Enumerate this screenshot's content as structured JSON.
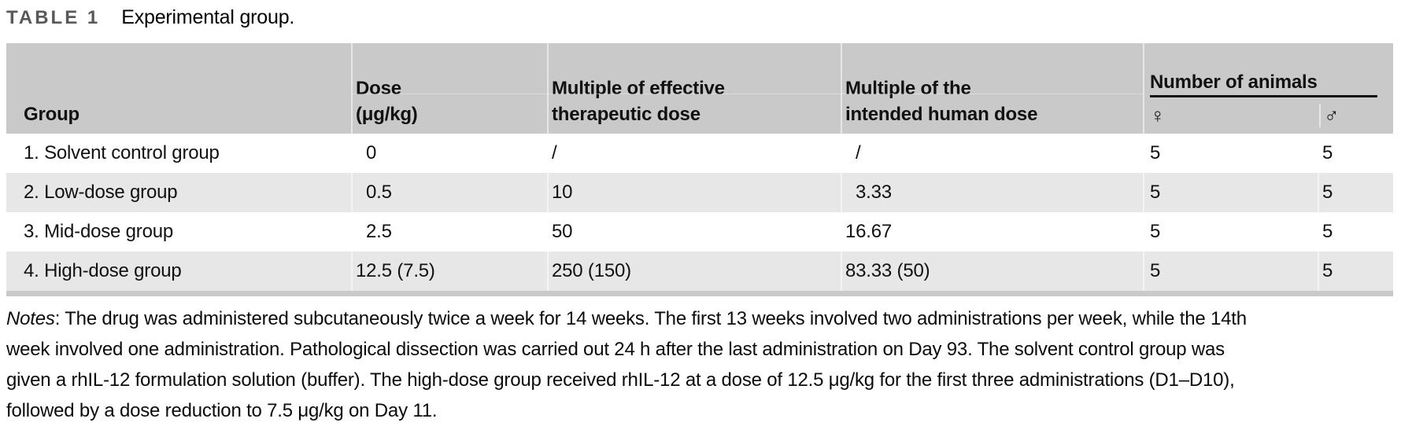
{
  "title": {
    "label": "TABLE 1",
    "caption": "Experimental group."
  },
  "table": {
    "columns": [
      {
        "id": "group",
        "lines": [
          "Group"
        ],
        "align": "left"
      },
      {
        "id": "dose",
        "lines": [
          "Dose",
          "(μg/kg)"
        ],
        "align": "decimal"
      },
      {
        "id": "mult_eff",
        "lines": [
          "Multiple of effective",
          "therapeutic dose"
        ],
        "align": "left"
      },
      {
        "id": "mult_human",
        "lines": [
          "Multiple of the",
          "intended human dose"
        ],
        "align": "decimal"
      }
    ],
    "animals_header": {
      "label": "Number of animals",
      "sub": [
        {
          "id": "female",
          "symbol": "♀"
        },
        {
          "id": "male",
          "symbol": "♂"
        }
      ]
    },
    "rows": [
      {
        "group": "1. Solvent control group",
        "dose": "0",
        "mult_eff": "/",
        "mult_human": "/",
        "female": "5",
        "male": "5"
      },
      {
        "group": "2. Low-dose group",
        "dose": "0.5",
        "mult_eff": "10",
        "mult_human": "3.33",
        "female": "5",
        "male": "5"
      },
      {
        "group": "3. Mid-dose group",
        "dose": "2.5",
        "mult_eff": "50",
        "mult_human": "16.67",
        "female": "5",
        "male": "5"
      },
      {
        "group": "4. High-dose group",
        "dose": "12.5 (7.5)",
        "mult_eff": "250 (150)",
        "mult_human": "83.33 (50)",
        "female": "5",
        "male": "5"
      }
    ]
  },
  "notes": {
    "label": "Notes",
    "line1": ": The drug was administered subcutaneously twice a week for 14 weeks. The first 13 weeks involved two administrations per week, while the 14th",
    "line2": "week involved one administration. Pathological dissection was carried out 24 h after the last administration on Day 93. The solvent control group was",
    "line3": "given a rhIL-12 formulation solution (buffer). The high-dose group received rhIL-12 at a dose of 12.5 μg/kg for the first three administrations (D1–D10),",
    "line4": "followed by a dose reduction to 7.5 μg/kg on Day 11."
  },
  "colors": {
    "header_bg": "#c9c9c9",
    "row_alt_bg": "#e7e7e7",
    "bottom_band": "#c9c9c9",
    "title_label": "#595959",
    "text": "#111111",
    "animals_rule": "#101010"
  }
}
